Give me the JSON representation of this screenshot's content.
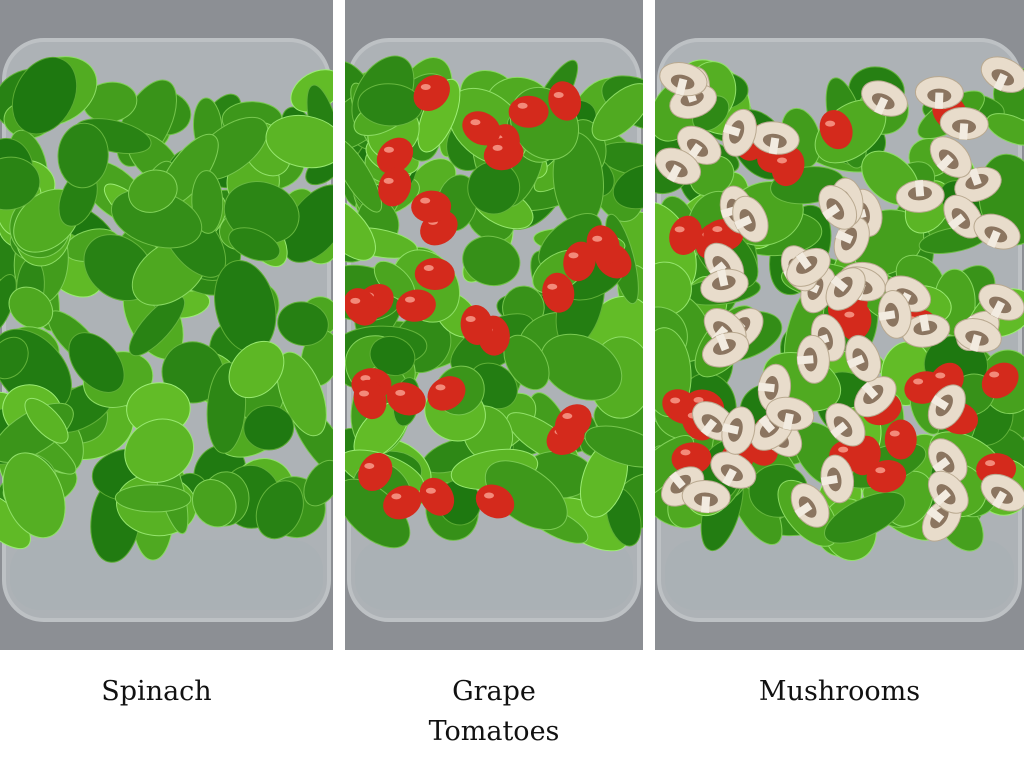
{
  "panels": [
    {
      "caption_line1": "Spinach",
      "caption_line2": "",
      "contents": "spinach"
    },
    {
      "caption_line1": "Grape",
      "caption_line2": "Tomatoes",
      "contents": "spinach-tomatoes"
    },
    {
      "caption_line1": "Mushrooms",
      "caption_line2": "",
      "contents": "spinach-tomatoes-mushrooms"
    }
  ],
  "colors": {
    "background": "#8c8f94",
    "spinach": "#3f8a2a",
    "tomato": "#d42a1c",
    "mushroom": "#e8dccb",
    "glass": "#c9cfd3"
  }
}
